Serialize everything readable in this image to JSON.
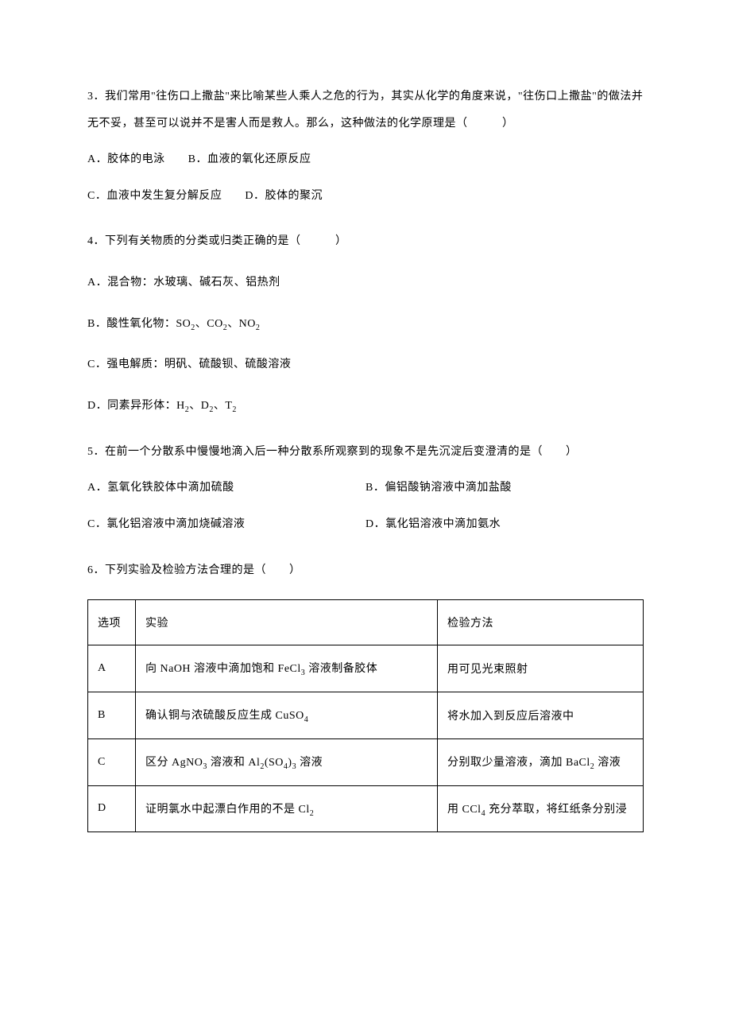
{
  "q3": {
    "text": "3．我们常用\"往伤口上撒盐\"来比喻某些人乘人之危的行为，其实从化学的角度来说，\"往伤口上撒盐\"的做法并无不妥，甚至可以说并不是害人而是救人。那么，这种做法的化学原理是（　　　）",
    "optAB": "A．胶体的电泳　　B．血液的氧化还原反应",
    "optCD": "C．血液中发生复分解反应　　D．胶体的聚沉"
  },
  "q4": {
    "text": "4．下列有关物质的分类或归类正确的是（　　　）",
    "optA": "A．混合物：水玻璃、碱石灰、铝热剂",
    "optB_html": "B．酸性氧化物：SO<sub>2</sub>、CO<sub>2</sub>、NO<sub>2</sub>",
    "optC": "C．强电解质：明矾、硫酸钡、硫酸溶液",
    "optD_html": "D．同素异形体：H<sub>2</sub>、D<sub>2</sub>、T<sub>2</sub>"
  },
  "q5": {
    "text": "5．在前一个分散系中慢慢地滴入后一种分散系所观察到的现象不是先沉淀后变澄清的是（　　）",
    "optA": "A．氢氧化铁胶体中滴加硫酸",
    "optB": "B．偏铝酸钠溶液中滴加盐酸",
    "optC": "C．氯化铝溶液中滴加烧碱溶液",
    "optD": "D．氯化铝溶液中滴加氨水"
  },
  "q6": {
    "text": "6．下列实验及检验方法合理的是（　　）",
    "table": {
      "header": {
        "c1": "选项",
        "c2": "实验",
        "c3": "检验方法"
      },
      "rows": [
        {
          "c1": "A",
          "c2_html": "向 NaOH 溶液中滴加饱和 FeCl<sub>3</sub> 溶液制备胶体",
          "c3": "用可见光束照射"
        },
        {
          "c1": "B",
          "c2_html": "确认铜与浓硫酸反应生成 CuSO<sub>4</sub>",
          "c3": "将水加入到反应后溶液中"
        },
        {
          "c1": "C",
          "c2_html": "区分 AgNO<sub>3</sub> 溶液和 Al<sub>2</sub>(SO<sub>4</sub>)<sub>3</sub> 溶液",
          "c3_html": "分别取少量溶液，滴加 BaCl<sub>2</sub> 溶液"
        },
        {
          "c1": "D",
          "c2_html": "证明氯水中起漂白作用的不是 Cl<sub>2</sub>",
          "c3_html": "用 CCl<sub>4</sub> 充分萃取，将红纸条分别浸"
        }
      ]
    }
  }
}
